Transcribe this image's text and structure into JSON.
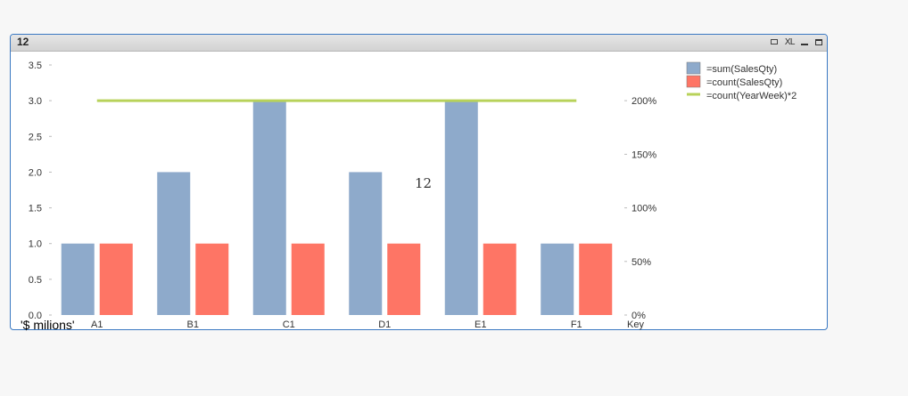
{
  "window": {
    "title": "12",
    "icons": [
      "print-icon",
      "xl-icon",
      "minimize-icon",
      "maximize-icon"
    ],
    "xl_label": "XL"
  },
  "unit_label": "'$ milions'",
  "chart_data": {
    "type": "bar",
    "categories": [
      "A1",
      "B1",
      "C1",
      "D1",
      "E1",
      "F1"
    ],
    "xlabel": "Key",
    "annotation": "12",
    "ylim": [
      0,
      3.5
    ],
    "y_ticks": [
      "0.0",
      "0.5",
      "1.0",
      "1.5",
      "2.0",
      "2.5",
      "3.0",
      "3.5"
    ],
    "y2lim": [
      0,
      2.33333
    ],
    "y2_ticks": [
      "0%",
      "50%",
      "100%",
      "150%",
      "200%"
    ],
    "legend_position": "top-right",
    "series": [
      {
        "name": "=sum(SalesQty)",
        "type": "bar",
        "axis": "left",
        "color": "#8eaacb",
        "values": [
          1,
          2,
          3,
          2,
          3,
          1
        ]
      },
      {
        "name": "=count(SalesQty)",
        "type": "bar",
        "axis": "left",
        "color": "#fe7565",
        "values": [
          1,
          1,
          1,
          1,
          1,
          1
        ]
      },
      {
        "name": "=count(YearWeek)*2",
        "type": "line",
        "axis": "right",
        "color": "#b8d25a",
        "values": [
          2,
          2,
          2,
          2,
          2,
          2
        ]
      }
    ]
  }
}
